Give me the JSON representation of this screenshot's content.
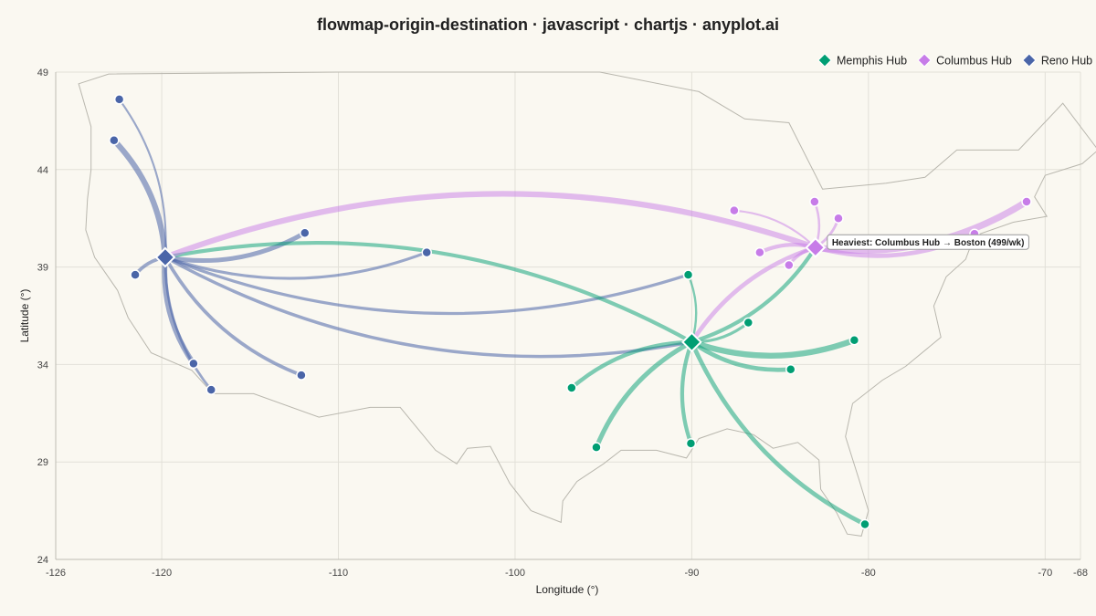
{
  "chart_data": {
    "type": "flowmap",
    "title": "flowmap-origin-destination · javascript · chartjs · anyplot.ai",
    "xlabel": "Longitude (°)",
    "ylabel": "Latitude (°)",
    "xlim": [
      -126,
      -68
    ],
    "ylim": [
      24,
      49
    ],
    "x_ticks": [
      -126,
      -120,
      -110,
      -100,
      -90,
      -80,
      -70,
      -68
    ],
    "y_ticks": [
      24,
      29,
      34,
      39,
      44,
      49
    ],
    "grid": true,
    "legend_position": "top-right",
    "annotation": "Heaviest: Columbus Hub → Boston (499/wk)",
    "hubs": [
      {
        "name": "Memphis Hub",
        "lon": -90.0,
        "lat": 35.15,
        "color": "#009E73"
      },
      {
        "name": "Columbus Hub",
        "lon": -83.0,
        "lat": 40.0,
        "color": "#C77CE8"
      },
      {
        "name": "Reno Hub",
        "lon": -119.8,
        "lat": 39.5,
        "color": "#4A65A8"
      }
    ],
    "flows": [
      {
        "hub": "Reno Hub",
        "lon": -122.7,
        "lat": 45.5,
        "volume": 420
      },
      {
        "hub": "Reno Hub",
        "lon": -122.4,
        "lat": 47.6,
        "volume": 90
      },
      {
        "hub": "Reno Hub",
        "lon": -121.5,
        "lat": 38.6,
        "volume": 230
      },
      {
        "hub": "Reno Hub",
        "lon": -118.2,
        "lat": 34.05,
        "volume": 380
      },
      {
        "hub": "Reno Hub",
        "lon": -117.2,
        "lat": 32.7,
        "volume": 140
      },
      {
        "hub": "Reno Hub",
        "lon": -112.1,
        "lat": 33.45,
        "volume": 220
      },
      {
        "hub": "Reno Hub",
        "lon": -111.9,
        "lat": 40.75,
        "volume": 320
      },
      {
        "hub": "Reno Hub",
        "lon": -105.0,
        "lat": 39.75,
        "volume": 170
      },
      {
        "hub": "Reno Hub",
        "lon": -90.2,
        "lat": 38.6,
        "volume": 180
      },
      {
        "hub": "Reno Hub",
        "lon": -90.0,
        "lat": 35.15,
        "volume": 200
      },
      {
        "hub": "Memphis Hub",
        "lon": -90.2,
        "lat": 38.6,
        "volume": 110
      },
      {
        "hub": "Memphis Hub",
        "lon": -86.8,
        "lat": 36.15,
        "volume": 170
      },
      {
        "hub": "Memphis Hub",
        "lon": -84.4,
        "lat": 33.75,
        "volume": 300
      },
      {
        "hub": "Memphis Hub",
        "lon": -80.8,
        "lat": 35.25,
        "volume": 430
      },
      {
        "hub": "Memphis Hub",
        "lon": -80.2,
        "lat": 25.8,
        "volume": 300
      },
      {
        "hub": "Memphis Hub",
        "lon": -90.05,
        "lat": 29.95,
        "volume": 260
      },
      {
        "hub": "Memphis Hub",
        "lon": -95.4,
        "lat": 29.75,
        "volume": 330
      },
      {
        "hub": "Memphis Hub",
        "lon": -96.8,
        "lat": 32.8,
        "volume": 270
      },
      {
        "hub": "Memphis Hub",
        "lon": -83.0,
        "lat": 40.0,
        "volume": 260
      },
      {
        "hub": "Memphis Hub",
        "lon": -119.8,
        "lat": 39.5,
        "volume": 250
      },
      {
        "hub": "Columbus Hub",
        "lon": -71.05,
        "lat": 42.35,
        "volume": 499
      },
      {
        "hub": "Columbus Hub",
        "lon": -74.0,
        "lat": 40.7,
        "volume": 300
      },
      {
        "hub": "Columbus Hub",
        "lon": -87.6,
        "lat": 41.9,
        "volume": 90
      },
      {
        "hub": "Columbus Hub",
        "lon": -83.05,
        "lat": 42.35,
        "volume": 120
      },
      {
        "hub": "Columbus Hub",
        "lon": -81.7,
        "lat": 41.5,
        "volume": 150
      },
      {
        "hub": "Columbus Hub",
        "lon": -86.15,
        "lat": 39.75,
        "volume": 260
      },
      {
        "hub": "Columbus Hub",
        "lon": -84.5,
        "lat": 39.1,
        "volume": 200
      },
      {
        "hub": "Columbus Hub",
        "lon": -90.0,
        "lat": 35.15,
        "volume": 300
      },
      {
        "hub": "Columbus Hub",
        "lon": -119.8,
        "lat": 39.5,
        "volume": 420
      }
    ]
  }
}
